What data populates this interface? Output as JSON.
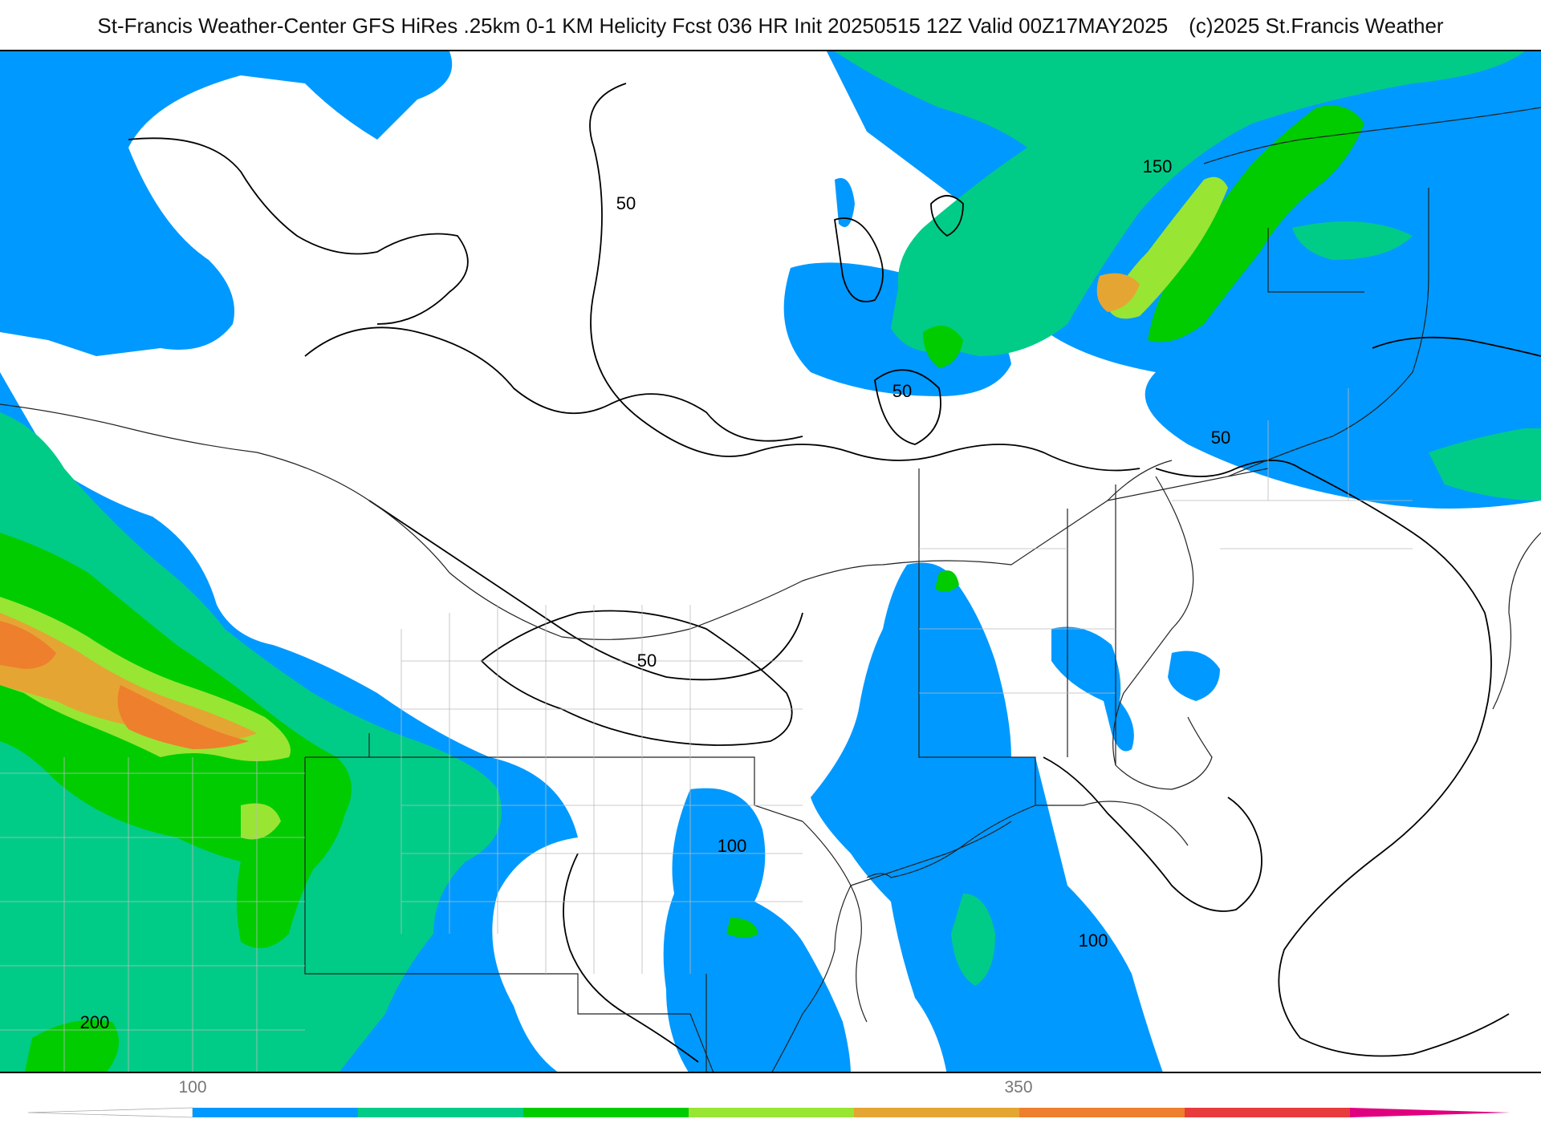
{
  "header": {
    "title": "St-Francis Weather-Center GFS HiRes .25km 0-1 KM Helicity Fcst 036 HR Init 20250515 12Z  Valid 00Z17MAY2025",
    "copyright": "(c)2025 St.Francis Weather"
  },
  "map": {
    "contour_labels": [
      "50",
      "50",
      "50",
      "50",
      "150",
      "100",
      "100",
      "200"
    ]
  },
  "legend": {
    "tick_labels": [
      "100",
      "350"
    ],
    "colors": [
      "#ffffff",
      "#0099ff",
      "#00cc88",
      "#00cc00",
      "#99e533",
      "#e5a533",
      "#ee7f2d",
      "#e83b3b",
      "#e0007f"
    ]
  }
}
